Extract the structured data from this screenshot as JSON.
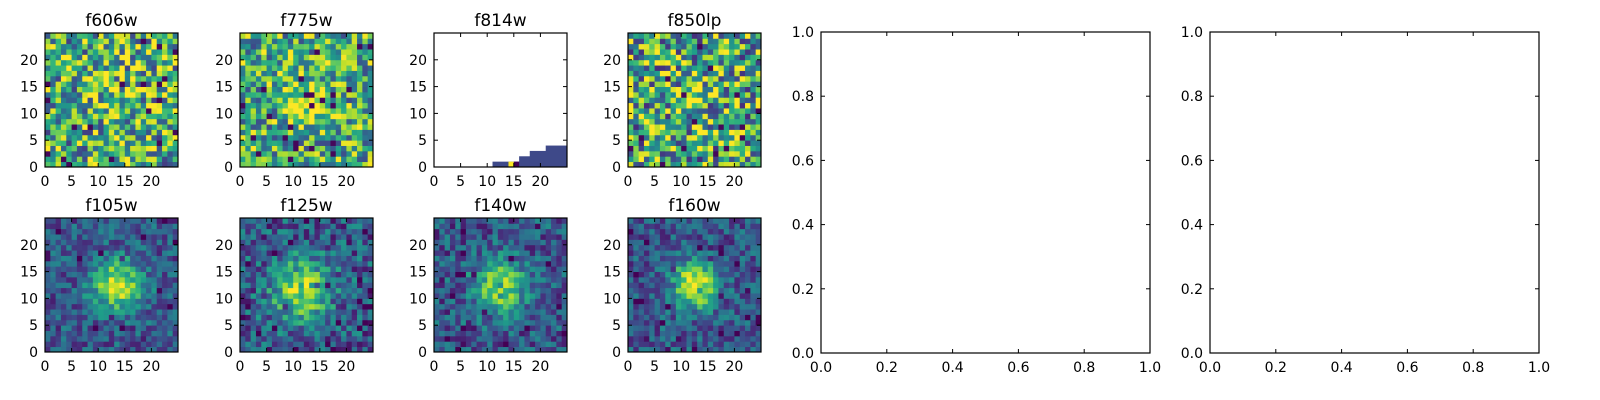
{
  "chart_data": [
    {
      "type": "heatmap",
      "title": "f606w",
      "colormap": "viridis",
      "xlim": [
        0,
        24
      ],
      "ylim": [
        0,
        24
      ],
      "xticks": [
        "0",
        "5",
        "10",
        "15",
        "20"
      ],
      "yticks": [
        "0",
        "5",
        "10",
        "15",
        "20"
      ],
      "size": [
        25,
        25
      ],
      "pattern": "noise",
      "peak": [
        13,
        12
      ],
      "peak_strength": 0.15,
      "noise": 0.45,
      "missing": "none"
    },
    {
      "type": "heatmap",
      "title": "f775w",
      "colormap": "viridis",
      "xlim": [
        0,
        24
      ],
      "ylim": [
        0,
        24
      ],
      "xticks": [
        "0",
        "5",
        "10",
        "15",
        "20"
      ],
      "yticks": [
        "0",
        "5",
        "10",
        "15",
        "20"
      ],
      "size": [
        25,
        25
      ],
      "pattern": "noise",
      "peak": [
        12,
        12
      ],
      "peak_strength": 0.22,
      "noise": 0.4,
      "missing": "none"
    },
    {
      "type": "heatmap",
      "title": "f814w",
      "colormap": "viridis",
      "xlim": [
        0,
        24
      ],
      "ylim": [
        0,
        24
      ],
      "xticks": [
        "0",
        "5",
        "10",
        "15",
        "20"
      ],
      "yticks": [
        "0",
        "5",
        "10",
        "15",
        "20"
      ],
      "size": [
        25,
        25
      ],
      "pattern": "partial",
      "missing": "most",
      "coverage": [
        {
          "x_from": 11,
          "x_to": 24,
          "rows": 1
        },
        {
          "x_from": 16,
          "x_to": 24,
          "rows": 2
        },
        {
          "x_from": 18,
          "x_to": 24,
          "rows": 3
        },
        {
          "x_from": 21,
          "x_to": 24,
          "rows": 4
        }
      ],
      "bright_cells": [
        [
          14,
          1
        ],
        [
          15,
          1
        ]
      ]
    },
    {
      "type": "heatmap",
      "title": "f850lp",
      "colormap": "viridis",
      "xlim": [
        0,
        24
      ],
      "ylim": [
        0,
        24
      ],
      "xticks": [
        "0",
        "5",
        "10",
        "15",
        "20"
      ],
      "yticks": [
        "0",
        "5",
        "10",
        "15",
        "20"
      ],
      "size": [
        25,
        25
      ],
      "pattern": "noise",
      "peak": [
        12,
        12
      ],
      "peak_strength": 0.08,
      "noise": 0.5,
      "missing": "none"
    },
    {
      "type": "heatmap",
      "title": "f105w",
      "colormap": "viridis",
      "xlim": [
        0,
        24
      ],
      "ylim": [
        0,
        24
      ],
      "xticks": [
        "0",
        "5",
        "10",
        "15",
        "20"
      ],
      "yticks": [
        "0",
        "5",
        "10",
        "15",
        "20"
      ],
      "size": [
        25,
        25
      ],
      "pattern": "source",
      "peak": [
        13,
        12
      ],
      "peak_strength": 0.65,
      "sigma": 3.2,
      "noise": 0.2,
      "missing": "none"
    },
    {
      "type": "heatmap",
      "title": "f125w",
      "colormap": "viridis",
      "xlim": [
        0,
        24
      ],
      "ylim": [
        0,
        24
      ],
      "xticks": [
        "0",
        "5",
        "10",
        "15",
        "20"
      ],
      "yticks": [
        "0",
        "5",
        "10",
        "15",
        "20"
      ],
      "size": [
        25,
        25
      ],
      "pattern": "source",
      "peak": [
        11,
        11
      ],
      "peak_strength": 0.55,
      "sigma": 4.0,
      "noise": 0.25,
      "missing": "none"
    },
    {
      "type": "heatmap",
      "title": "f140w",
      "colormap": "viridis",
      "xlim": [
        0,
        24
      ],
      "ylim": [
        0,
        24
      ],
      "xticks": [
        "0",
        "5",
        "10",
        "15",
        "20"
      ],
      "yticks": [
        "0",
        "5",
        "10",
        "15",
        "20"
      ],
      "size": [
        25,
        25
      ],
      "pattern": "source",
      "peak": [
        12,
        12
      ],
      "peak_strength": 0.6,
      "sigma": 3.3,
      "noise": 0.22,
      "missing": "none"
    },
    {
      "type": "heatmap",
      "title": "f160w",
      "colormap": "viridis",
      "xlim": [
        0,
        24
      ],
      "ylim": [
        0,
        24
      ],
      "xticks": [
        "0",
        "5",
        "10",
        "15",
        "20"
      ],
      "yticks": [
        "0",
        "5",
        "10",
        "15",
        "20"
      ],
      "size": [
        25,
        25
      ],
      "pattern": "source",
      "peak": [
        12,
        12
      ],
      "peak_strength": 0.7,
      "sigma": 3.0,
      "noise": 0.2,
      "missing": "none"
    },
    {
      "type": "empty",
      "title": "",
      "xlim": [
        0.0,
        1.0
      ],
      "ylim": [
        0.0,
        1.0
      ],
      "xticks": [
        "0.0",
        "0.2",
        "0.4",
        "0.6",
        "0.8",
        "1.0"
      ],
      "yticks": [
        "0.0",
        "0.2",
        "0.4",
        "0.6",
        "0.8",
        "1.0"
      ]
    },
    {
      "type": "empty",
      "title": "",
      "xlim": [
        0.0,
        1.0
      ],
      "ylim": [
        0.0,
        1.0
      ],
      "xticks": [
        "0.0",
        "0.2",
        "0.4",
        "0.6",
        "0.8",
        "1.0"
      ],
      "yticks": [
        "0.0",
        "0.2",
        "0.4",
        "0.6",
        "0.8",
        "1.0"
      ]
    }
  ]
}
